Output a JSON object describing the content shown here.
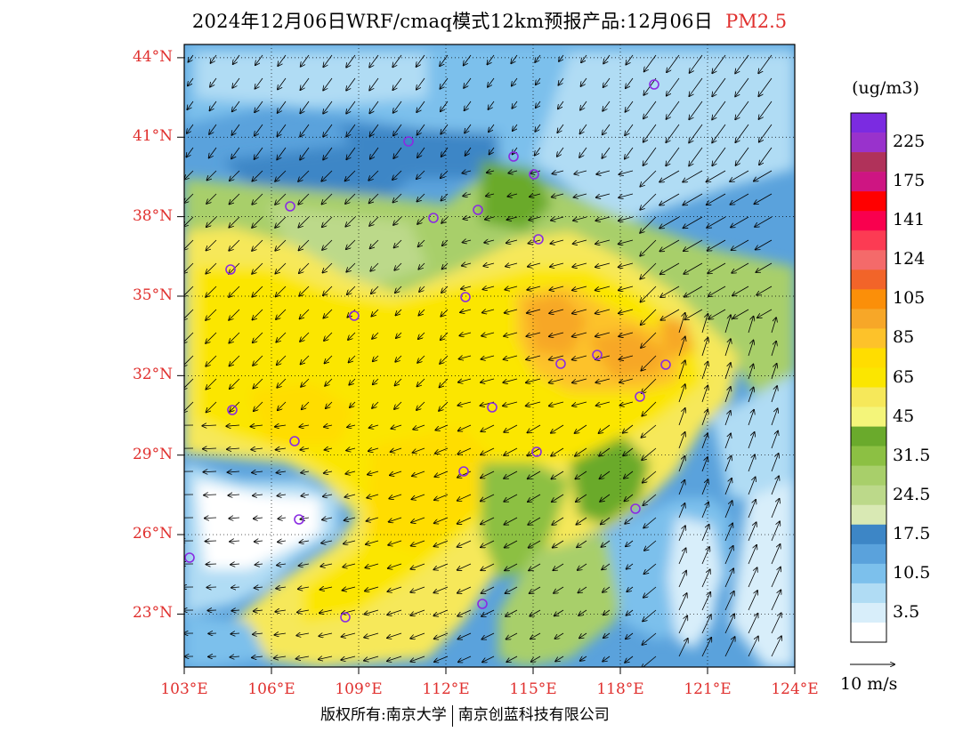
{
  "title": {
    "main": "2024年12月06日WRF/cmaq模式12km预报产品:12月06日",
    "species": "PM2.5",
    "species_color": "#e0302e"
  },
  "map": {
    "lon_range": [
      103,
      124
    ],
    "lat_range": [
      21,
      44.5
    ],
    "lat_labels": [
      "44°N",
      "41°N",
      "38°N",
      "35°N",
      "32°N",
      "29°N",
      "26°N",
      "23°N"
    ],
    "lon_labels": [
      "103°E",
      "106°E",
      "109°E",
      "112°E",
      "115°E",
      "118°E",
      "121°E",
      "124°E"
    ],
    "label_color": "#e0302e",
    "station_marker_color": "#8a2be2"
  },
  "colorbar": {
    "unit": "(ug/m3)",
    "colors": [
      "#ffffff",
      "#d8eefa",
      "#b0dcf4",
      "#7cc0ec",
      "#5aa2dc",
      "#3d86c6",
      "#d9e9b4",
      "#bcd98a",
      "#a8cf6a",
      "#8cc043",
      "#6aaa2c",
      "#f4f57a",
      "#f6e85a",
      "#fbe600",
      "#ffdd00",
      "#fdc22a",
      "#f7a728",
      "#fb8f09",
      "#f26429",
      "#f46a6a",
      "#fc3b53",
      "#f9004e",
      "#ff0000",
      "#ce1582",
      "#b0325a",
      "#9932cc",
      "#7b2be1"
    ],
    "labels": [
      "3.5",
      "10.5",
      "17.5",
      "24.5",
      "31.5",
      "45",
      "65",
      "85",
      "105",
      "124",
      "141",
      "175",
      "225"
    ]
  },
  "vector_legend": {
    "label": "10 m/s"
  },
  "footer": {
    "left": "版权所有:南京大学",
    "right": "南京创蓝科技有限公司"
  }
}
